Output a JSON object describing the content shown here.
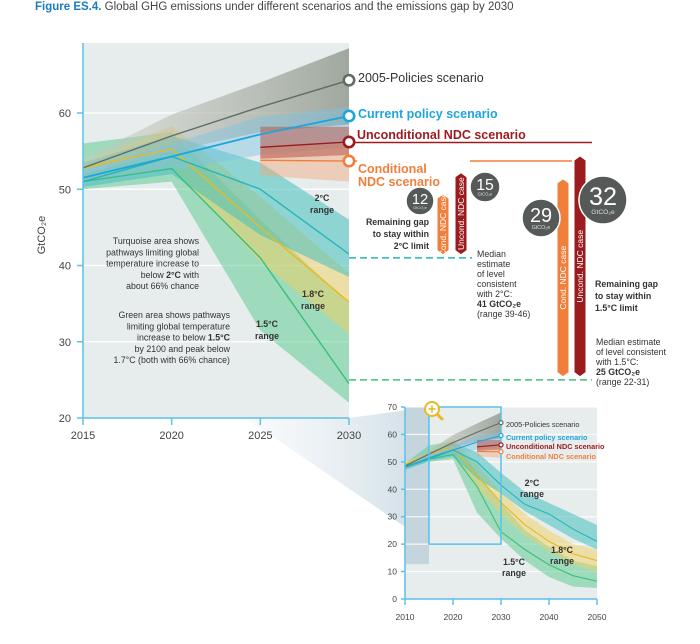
{
  "caption": {
    "figure_label": "Figure ES.4.",
    "title": "Global GHG emissions under different scenarios and the emissions gap by 2030"
  },
  "colors": {
    "policies2005": "#5f6e66",
    "current": "#1ea5dc",
    "unconditional": "#9b1b1e",
    "conditional": "#f07f3c",
    "twoC": "#26b5b8",
    "onePointEight": "#e8b923",
    "onePointFive": "#3cbf7b",
    "bubble": "#555a58",
    "axis": "#5bc2e7",
    "caption_accent": "#1a7bbf"
  },
  "chart_data": [
    {
      "type": "line",
      "name": "main",
      "ylabel": "GtCO₂e",
      "xlabel": "",
      "xlim": [
        2015,
        2030
      ],
      "ylim": [
        20,
        69
      ],
      "x_ticks": [
        2015,
        2020,
        2025,
        2030
      ],
      "y_ticks": [
        20,
        30,
        40,
        50,
        60
      ],
      "grid": true,
      "series": [
        {
          "key": "policies2005",
          "name": "2005-Policies scenario",
          "x": [
            2015,
            2020,
            2025,
            2030
          ],
          "y": [
            52.8,
            57.0,
            60.8,
            64.3
          ],
          "band_low": [
            52.0,
            55.0,
            57.5,
            58.5
          ],
          "band_high": [
            54.0,
            59.8,
            64.0,
            68.5
          ]
        },
        {
          "key": "current",
          "name": "Current policy scenario",
          "x": [
            2015,
            2020,
            2025,
            2030
          ],
          "y": [
            51.5,
            54.3,
            57.2,
            59.6
          ],
          "band_low": [
            50.5,
            52.5,
            54.5,
            55.5
          ],
          "band_high": [
            52.5,
            56.0,
            59.5,
            60.8
          ]
        },
        {
          "key": "unconditional",
          "name": "Unconditional NDC scenario",
          "x": [
            2025,
            2030
          ],
          "y": [
            55.5,
            56.2
          ],
          "band_low": [
            54.0,
            54.5
          ],
          "band_high": [
            58.2,
            58.2
          ]
        },
        {
          "key": "conditional",
          "name": "Conditional NDC scenario",
          "x": [
            2025,
            2030
          ],
          "y": [
            53.8,
            53.7
          ],
          "band_low": [
            51.8,
            51.0
          ],
          "band_high": [
            55.5,
            56.0
          ]
        },
        {
          "key": "twoC",
          "name": "2°C range",
          "x": [
            2015,
            2020,
            2025,
            2030
          ],
          "y": [
            51.0,
            54.3,
            50.0,
            41.5
          ],
          "band_low": [
            50.3,
            52.0,
            44.0,
            38.5
          ],
          "band_high": [
            53.5,
            57.0,
            53.5,
            46.0
          ]
        },
        {
          "key": "onePointEight",
          "name": "1.8°C range",
          "x": [
            2015,
            2020,
            2025,
            2030
          ],
          "y": [
            52.8,
            55.3,
            45.0,
            35.2
          ],
          "band_low": [
            51.0,
            53.0,
            40.5,
            31.0
          ],
          "band_high": [
            53.5,
            58.3,
            49.0,
            39.0
          ]
        },
        {
          "key": "onePointFive",
          "name": "1.5°C range",
          "x": [
            2015,
            2020,
            2025,
            2030
          ],
          "y": [
            51.0,
            52.7,
            41.0,
            24.5
          ],
          "band_low": [
            50.0,
            51.0,
            31.5,
            22.0
          ],
          "band_high": [
            56.0,
            57.5,
            46.0,
            35.0
          ]
        }
      ],
      "scenario_labels": [
        "2005-Policies scenario",
        "Current policy scenario",
        "Unconditional NDC scenario",
        "Conditional NDC scenario"
      ],
      "range_labels": {
        "twoC": [
          "2°C",
          "range"
        ],
        "onePointEight": [
          "1.8°C",
          "range"
        ],
        "onePointFive": [
          "1.5°C",
          "range"
        ]
      },
      "notes": {
        "turquoise": [
          "Turquoise area shows",
          "pathways limiting global",
          "temperature increase to",
          "below |2°C| with",
          "about 66% chance"
        ],
        "green": [
          "Green area shows pathways",
          "limiting global temperature",
          "increase to below |1.5°C|",
          "by 2100 and peak below",
          "1.7°C (both with 66% chance)"
        ]
      },
      "gap_2C": {
        "label": [
          "Remaining gap",
          "to stay within",
          "2°C limit"
        ],
        "median": 41,
        "range": [
          39,
          46
        ],
        "median_text": [
          "Median",
          "estimate",
          "of level",
          "consistent",
          "with 2°C:",
          "41 GtCO₂e",
          "(range 39-46)"
        ],
        "bars": [
          {
            "case": "Cond. NDC case",
            "from": 53.7,
            "to": 41,
            "gap": 12,
            "unit": "GtCO₂e"
          },
          {
            "case": "Uncond. NDC case",
            "from": 56.2,
            "to": 41,
            "gap": 15,
            "unit": "GtCO₂e"
          }
        ]
      },
      "gap_1_5C": {
        "label": [
          "Remaining gap",
          "to stay within",
          "1.5°C limit"
        ],
        "median": 25,
        "range": [
          22,
          31
        ],
        "median_text": [
          "Median estimate",
          "of level consistent",
          "with 1.5°C:",
          "25 GtCO₂e",
          "(range 22-31)"
        ],
        "bars": [
          {
            "case": "Cond. NDC case",
            "from": 53.7,
            "to": 25,
            "gap": 29,
            "unit": "GtCO₂e"
          },
          {
            "case": "Uncond. NDC case",
            "from": 56.2,
            "to": 25,
            "gap": 32,
            "unit": "GtCO₂e"
          }
        ]
      }
    },
    {
      "type": "line",
      "name": "inset",
      "xlim": [
        2010,
        2050
      ],
      "ylim": [
        0,
        70
      ],
      "x_ticks": [
        2010,
        2020,
        2030,
        2040,
        2050
      ],
      "y_ticks": [
        0,
        10,
        20,
        30,
        40,
        50,
        60,
        70
      ],
      "highlight_window": {
        "x": [
          2015,
          2030
        ],
        "y": [
          20,
          70
        ]
      },
      "series": [
        {
          "key": "policies2005",
          "name": "2005-Policies scenario",
          "x": [
            2010,
            2015,
            2020,
            2025,
            2030
          ],
          "y": [
            48.5,
            52.8,
            57.0,
            60.8,
            64.3
          ],
          "band_low": [
            47.5,
            52,
            55,
            57.5,
            58.5
          ],
          "band_high": [
            49.5,
            54,
            59.8,
            64,
            68
          ]
        },
        {
          "key": "current",
          "name": "Current policy scenario",
          "x": [
            2010,
            2015,
            2020,
            2025,
            2030
          ],
          "y": [
            48.0,
            51.5,
            54.3,
            57.2,
            59.6
          ],
          "band_low": [
            47,
            50.5,
            52.5,
            54.5,
            55.5
          ],
          "band_high": [
            49,
            52.5,
            56,
            59.5,
            60.8
          ]
        },
        {
          "key": "unconditional",
          "name": "Unconditional NDC scenario",
          "x": [
            2025,
            2030
          ],
          "y": [
            55.5,
            56.2
          ],
          "band_low": [
            54,
            54.5
          ],
          "band_high": [
            58,
            58
          ]
        },
        {
          "key": "conditional",
          "name": "Conditional NDC scenario",
          "x": [
            2025,
            2030
          ],
          "y": [
            53.8,
            53.7
          ],
          "band_low": [
            52,
            51.5
          ],
          "band_high": [
            55.5,
            55.5
          ]
        },
        {
          "key": "twoC",
          "name": "2°C range",
          "x": [
            2010,
            2015,
            2020,
            2025,
            2030,
            2035,
            2040,
            2045,
            2050
          ],
          "y": [
            48.0,
            51.0,
            54.3,
            50.0,
            41.5,
            34.5,
            31.0,
            25.5,
            21.0
          ],
          "band_low": [
            47,
            50.3,
            52,
            44,
            38.5,
            32,
            27,
            22,
            18
          ],
          "band_high": [
            49,
            53.5,
            57,
            53.5,
            46,
            39,
            35,
            31,
            27
          ]
        },
        {
          "key": "onePointEight",
          "name": "1.8°C range",
          "x": [
            2010,
            2015,
            2020,
            2025,
            2030,
            2035,
            2040,
            2045,
            2050
          ],
          "y": [
            49.0,
            52.8,
            55.3,
            45.0,
            35.2,
            27.0,
            21.0,
            16.5,
            14.0
          ],
          "band_low": [
            48,
            51,
            53,
            40.5,
            31,
            23,
            17.5,
            12.5,
            10
          ],
          "band_high": [
            50,
            53.5,
            58.3,
            49,
            39,
            31,
            25,
            20,
            18
          ]
        },
        {
          "key": "onePointFive",
          "name": "1.5°C range",
          "x": [
            2010,
            2015,
            2020,
            2025,
            2030,
            2035,
            2040,
            2045,
            2050
          ],
          "y": [
            48.5,
            51.0,
            52.7,
            41.0,
            24.5,
            18.0,
            12.5,
            8.5,
            6.5
          ],
          "band_low": [
            47.5,
            50,
            51,
            31.5,
            22,
            14,
            8,
            4.5,
            4
          ],
          "band_high": [
            49.5,
            56,
            57.5,
            46,
            35,
            25,
            19,
            14,
            12
          ]
        }
      ],
      "scenario_labels": [
        "2005-Policies scenario",
        "Current policy scenario",
        "Unconditional NDC scenario",
        "Conditional NDC scenario"
      ],
      "range_labels": {
        "twoC": [
          "2°C",
          "range"
        ],
        "onePointEight": [
          "1.8°C",
          "range"
        ],
        "onePointFive": [
          "1.5°C",
          "range"
        ]
      }
    }
  ]
}
